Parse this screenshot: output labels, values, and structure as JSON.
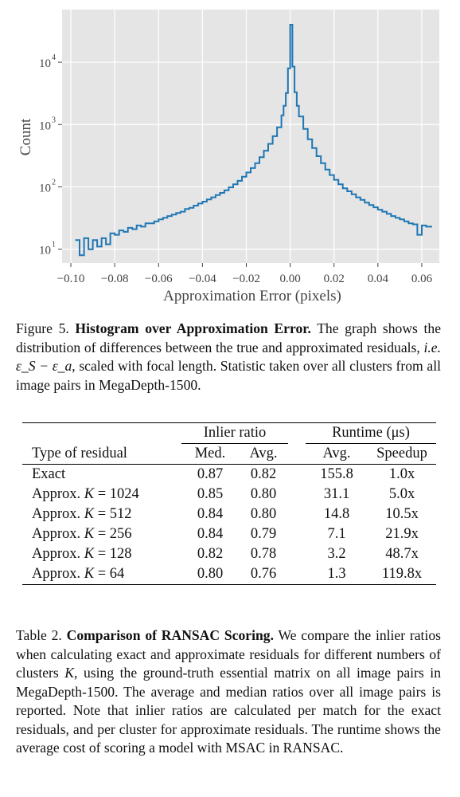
{
  "chart_data": {
    "type": "histogram-step",
    "xlabel": "Approximation Error (pixels)",
    "ylabel": "Count",
    "xlim": [
      -0.104,
      0.068
    ],
    "ylim": [
      6,
      70000
    ],
    "y_scale": "log",
    "grid": true,
    "xticks": [
      -0.1,
      -0.08,
      -0.06,
      -0.04,
      -0.02,
      0.0,
      0.02,
      0.04,
      0.06
    ],
    "xtick_labels": [
      "−0.10",
      "−0.08",
      "−0.06",
      "−0.04",
      "−0.02",
      "0.00",
      "0.02",
      "0.04",
      "0.06"
    ],
    "yticks": [
      10,
      100,
      1000,
      10000
    ],
    "ytick_labels": [
      "10",
      "10",
      "10",
      "10"
    ],
    "ytick_exponents": [
      "1",
      "2",
      "3",
      "4"
    ],
    "line_color": "#1f77b4",
    "background": "#e5e5e5",
    "points": [
      [
        -0.098,
        14
      ],
      [
        -0.096,
        8
      ],
      [
        -0.094,
        15
      ],
      [
        -0.092,
        10
      ],
      [
        -0.09,
        14
      ],
      [
        -0.088,
        11
      ],
      [
        -0.086,
        15
      ],
      [
        -0.084,
        12
      ],
      [
        -0.082,
        18
      ],
      [
        -0.08,
        17
      ],
      [
        -0.078,
        20
      ],
      [
        -0.076,
        19
      ],
      [
        -0.074,
        22
      ],
      [
        -0.072,
        21
      ],
      [
        -0.07,
        24
      ],
      [
        -0.068,
        23
      ],
      [
        -0.066,
        26
      ],
      [
        -0.064,
        26
      ],
      [
        -0.062,
        28
      ],
      [
        -0.06,
        30
      ],
      [
        -0.058,
        32
      ],
      [
        -0.056,
        34
      ],
      [
        -0.054,
        36
      ],
      [
        -0.052,
        38
      ],
      [
        -0.05,
        40
      ],
      [
        -0.048,
        44
      ],
      [
        -0.046,
        46
      ],
      [
        -0.044,
        50
      ],
      [
        -0.042,
        54
      ],
      [
        -0.04,
        58
      ],
      [
        -0.038,
        63
      ],
      [
        -0.036,
        68
      ],
      [
        -0.034,
        74
      ],
      [
        -0.032,
        80
      ],
      [
        -0.03,
        88
      ],
      [
        -0.028,
        98
      ],
      [
        -0.026,
        110
      ],
      [
        -0.024,
        125
      ],
      [
        -0.022,
        145
      ],
      [
        -0.02,
        170
      ],
      [
        -0.018,
        200
      ],
      [
        -0.016,
        240
      ],
      [
        -0.014,
        300
      ],
      [
        -0.012,
        380
      ],
      [
        -0.01,
        490
      ],
      [
        -0.008,
        650
      ],
      [
        -0.006,
        900
      ],
      [
        -0.004,
        1400
      ],
      [
        -0.003,
        2000
      ],
      [
        -0.002,
        3200
      ],
      [
        -0.001,
        8000
      ],
      [
        0.0,
        40000
      ],
      [
        0.001,
        8500
      ],
      [
        0.002,
        3300
      ],
      [
        0.003,
        2000
      ],
      [
        0.004,
        1350
      ],
      [
        0.006,
        850
      ],
      [
        0.008,
        580
      ],
      [
        0.01,
        420
      ],
      [
        0.012,
        310
      ],
      [
        0.014,
        240
      ],
      [
        0.016,
        190
      ],
      [
        0.018,
        155
      ],
      [
        0.02,
        130
      ],
      [
        0.022,
        110
      ],
      [
        0.024,
        95
      ],
      [
        0.026,
        85
      ],
      [
        0.028,
        76
      ],
      [
        0.03,
        68
      ],
      [
        0.032,
        62
      ],
      [
        0.034,
        56
      ],
      [
        0.036,
        51
      ],
      [
        0.038,
        47
      ],
      [
        0.04,
        43
      ],
      [
        0.042,
        40
      ],
      [
        0.044,
        37
      ],
      [
        0.046,
        34
      ],
      [
        0.048,
        32
      ],
      [
        0.05,
        30
      ],
      [
        0.052,
        28
      ],
      [
        0.054,
        26
      ],
      [
        0.056,
        25
      ],
      [
        0.058,
        17
      ],
      [
        0.06,
        24
      ],
      [
        0.062,
        23
      ],
      [
        0.064,
        23
      ]
    ]
  },
  "figure_caption": {
    "label": "Figure 5.",
    "title": "Histogram over Approximation Error.",
    "text_1": "The graph shows the distribution of differences between the true and approximated residuals,",
    "ie": "i.e.",
    "math": "ε_S − ε_a",
    "text_2": ", scaled with focal length. Statistic taken over all clusters from all image pairs in MegaDepth-1500."
  },
  "table": {
    "group_inlier": "Inlier ratio",
    "group_runtime": "Runtime (μs)",
    "col_type": "Type of residual",
    "col_med": "Med.",
    "col_avg": "Avg.",
    "col_rt_avg": "Avg.",
    "col_speedup": "Speedup",
    "rows": [
      {
        "name": "Exact",
        "k": "",
        "med": "0.87",
        "avg": "0.82",
        "runtime": "155.8",
        "speedup": "1.0x"
      },
      {
        "name": "Approx.",
        "k": "K = 1024",
        "med": "0.85",
        "avg": "0.80",
        "runtime": "31.1",
        "speedup": "5.0x"
      },
      {
        "name": "Approx.",
        "k": "K = 512",
        "med": "0.84",
        "avg": "0.80",
        "runtime": "14.8",
        "speedup": "10.5x"
      },
      {
        "name": "Approx.",
        "k": "K = 256",
        "med": "0.84",
        "avg": "0.79",
        "runtime": "7.1",
        "speedup": "21.9x"
      },
      {
        "name": "Approx.",
        "k": "K = 128",
        "med": "0.82",
        "avg": "0.78",
        "runtime": "3.2",
        "speedup": "48.7x"
      },
      {
        "name": "Approx.",
        "k": "K = 64",
        "med": "0.80",
        "avg": "0.76",
        "runtime": "1.3",
        "speedup": "119.8x"
      }
    ]
  },
  "table_caption": {
    "label": "Table 2.",
    "title": "Comparison of RANSAC Scoring.",
    "text_1": "We compare the inlier ratios when calculating exact and approximate residuals for different numbers of clusters",
    "k": "K",
    "text_2": ", using the ground-truth essential matrix on all image pairs in MegaDepth-1500. The average and median ratios over all image pairs is reported. Note that inlier ratios are calculated per match for the exact residuals, and per cluster for approximate residuals. The runtime shows the average cost of scoring a model with MSAC in RANSAC."
  }
}
